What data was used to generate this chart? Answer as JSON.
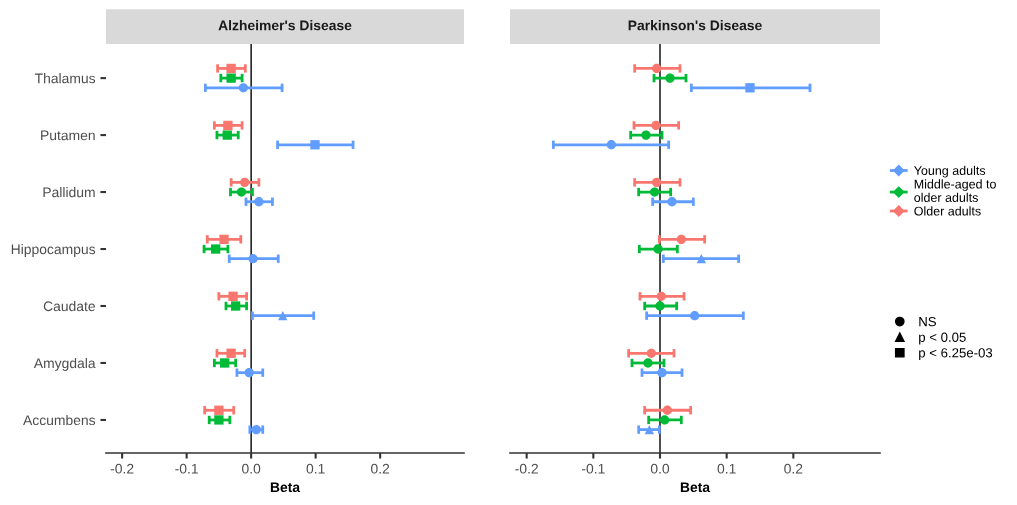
{
  "chart_data": [
    {
      "type": "scatter",
      "orientation": "horizontal",
      "title": "Alzheimer's Disease",
      "xlabel": "Beta",
      "categories": [
        "Thalamus",
        "Putamen",
        "Pallidum",
        "Hippocampus",
        "Caudate",
        "Amygdala",
        "Accumbens"
      ],
      "xlim": [
        -0.225,
        0.33
      ],
      "xticks": [
        -0.2,
        -0.1,
        {
          "value": 0,
          "label": "0.0"
        },
        0.1,
        0.2
      ],
      "ref_lines": [
        {
          "axis": "x",
          "value": 0,
          "color": "#000000"
        }
      ],
      "legend": "right",
      "series": [
        {
          "name": "Young adults",
          "color": "#619cff",
          "values": [
            -0.012,
            0.099,
            0.012,
            0.003,
            0.049,
            -0.003,
            0.008
          ],
          "errors": [
            [
              -0.071,
              0.048
            ],
            [
              0.041,
              0.158
            ],
            [
              -0.008,
              0.033
            ],
            [
              -0.034,
              0.042
            ],
            [
              0.002,
              0.097
            ],
            [
              -0.022,
              0.018
            ],
            [
              -0.002,
              0.018
            ]
          ],
          "marker": [
            "circle",
            "square",
            "circle",
            "circle",
            "triangle",
            "circle",
            "circle"
          ]
        },
        {
          "name": "Middle-aged to\nolder adults",
          "color": "#00ba38",
          "values": [
            -0.031,
            -0.037,
            -0.015,
            -0.055,
            -0.024,
            -0.041,
            -0.05
          ],
          "errors": [
            [
              -0.047,
              -0.014
            ],
            [
              -0.053,
              -0.02
            ],
            [
              -0.032,
              0.002
            ],
            [
              -0.073,
              -0.036
            ],
            [
              -0.039,
              -0.007
            ],
            [
              -0.057,
              -0.024
            ],
            [
              -0.065,
              -0.033
            ]
          ],
          "marker": [
            "square",
            "square",
            "circle",
            "square",
            "square",
            "square",
            "square"
          ]
        },
        {
          "name": "Older adults",
          "color": "#f8766d",
          "values": [
            -0.031,
            -0.036,
            -0.01,
            -0.042,
            -0.028,
            -0.031,
            -0.05
          ],
          "errors": [
            [
              -0.052,
              -0.009
            ],
            [
              -0.057,
              -0.014
            ],
            [
              -0.031,
              0.012
            ],
            [
              -0.068,
              -0.016
            ],
            [
              -0.05,
              -0.007
            ],
            [
              -0.053,
              -0.01
            ],
            [
              -0.072,
              -0.027
            ]
          ],
          "marker": [
            "square",
            "square",
            "circle",
            "square",
            "square",
            "square",
            "square"
          ]
        }
      ]
    },
    {
      "type": "scatter",
      "orientation": "horizontal",
      "title": "Parkinson's Disease",
      "xlabel": "Beta",
      "categories": [
        null,
        null,
        null,
        null,
        null,
        null,
        null
      ],
      "tick_labels": "x",
      "xlim": [
        -0.225,
        0.33
      ],
      "xticks": [
        -0.2,
        -0.1,
        {
          "value": 0,
          "label": "0.0"
        },
        0.1,
        0.2
      ],
      "ref_lines": [
        {
          "axis": "x",
          "value": 0,
          "color": "#000000"
        }
      ],
      "legend": "right",
      "series": [
        {
          "color": "#619cff",
          "values": [
            0.135,
            -0.073,
            0.018,
            0.062,
            0.052,
            0.003,
            -0.016
          ],
          "errors": [
            [
              0.047,
              0.225
            ],
            [
              -0.16,
              0.013
            ],
            [
              -0.011,
              0.05
            ],
            [
              0.005,
              0.118
            ],
            [
              -0.02,
              0.125
            ],
            [
              -0.027,
              0.033
            ],
            [
              -0.032,
              -0.001
            ]
          ],
          "marker": [
            "square",
            "circle",
            "circle",
            "triangle",
            "circle",
            "circle",
            "triangle"
          ]
        },
        {
          "color": "#00ba38",
          "values": [
            0.015,
            -0.021,
            -0.008,
            -0.003,
            0.0,
            -0.018,
            0.007
          ],
          "errors": [
            [
              -0.009,
              0.039
            ],
            [
              -0.044,
              0.003
            ],
            [
              -0.032,
              0.016
            ],
            [
              -0.031,
              0.026
            ],
            [
              -0.023,
              0.025
            ],
            [
              -0.042,
              0.006
            ],
            [
              -0.017,
              0.032
            ]
          ],
          "marker": [
            "circle",
            "circle",
            "circle",
            "circle",
            "circle",
            "circle",
            "circle"
          ]
        },
        {
          "color": "#f8766d",
          "values": [
            -0.005,
            -0.006,
            -0.005,
            0.032,
            0.002,
            -0.013,
            0.011
          ],
          "errors": [
            [
              -0.038,
              0.03
            ],
            [
              -0.039,
              0.028
            ],
            [
              -0.038,
              0.03
            ],
            [
              -0.001,
              0.067
            ],
            [
              -0.03,
              0.036
            ],
            [
              -0.047,
              0.021
            ],
            [
              -0.023,
              0.046
            ]
          ],
          "marker": [
            "circle",
            "circle",
            "circle",
            "circle",
            "circle",
            "circle",
            "circle"
          ]
        },
        {
          "name": "NS",
          "color": "#000000",
          "values": [
            null,
            null,
            null,
            null,
            null,
            null,
            null
          ],
          "marker": "circle"
        },
        {
          "name": "p < 0.05",
          "color": "#000000",
          "values": [
            null,
            null,
            null,
            null,
            null,
            null,
            null
          ],
          "marker": "triangle"
        },
        {
          "name": "p < 6.25e-03",
          "color": "#000000",
          "values": [
            null,
            null,
            null,
            null,
            null,
            null,
            null
          ],
          "marker": "square"
        }
      ]
    }
  ]
}
